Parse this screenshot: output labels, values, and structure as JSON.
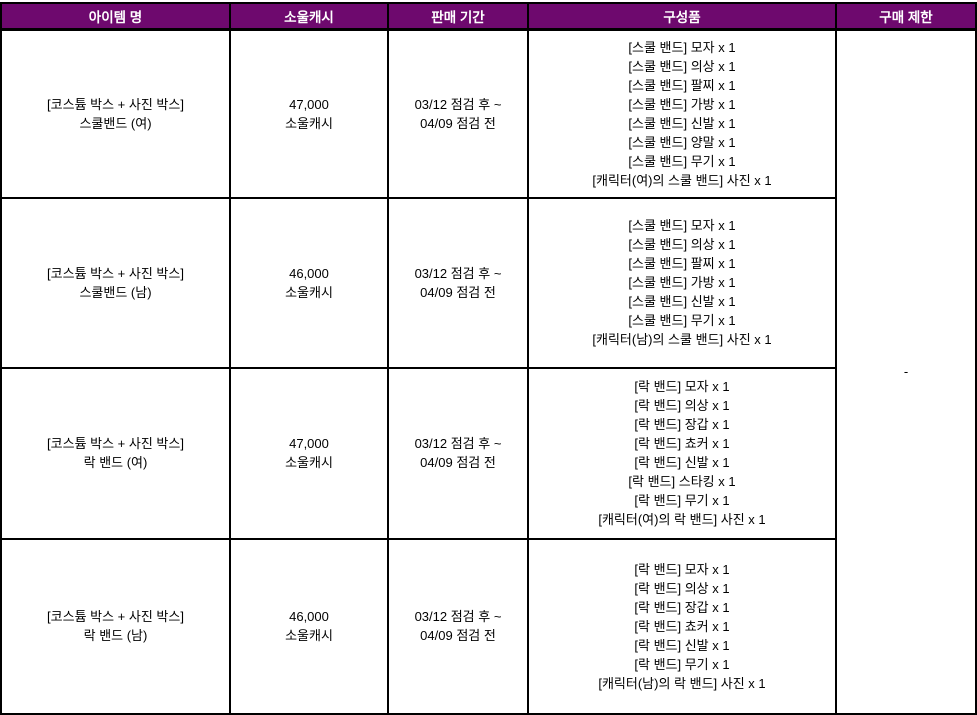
{
  "colors": {
    "header_bg": "#6E096E",
    "header_text": "#FFFFFF",
    "border": "#000000"
  },
  "table": {
    "headers": [
      "아이템 명",
      "소울캐시",
      "판매 기간",
      "구성품",
      "구매 제한"
    ],
    "purchase_limit": "-",
    "rows": [
      {
        "item_name_lines": [
          "[코스튬 박스 + 사진 박스]",
          "스쿨밴드 (여)"
        ],
        "price_lines": [
          "47,000",
          "소울캐시"
        ],
        "period_lines": [
          "03/12 점검 후 ~",
          "04/09 점검 전"
        ],
        "components": [
          "[스쿨 밴드] 모자 x 1",
          "[스쿨 밴드] 의상 x 1",
          "[스쿨 밴드] 팔찌 x 1",
          "[스쿨 밴드] 가방 x 1",
          "[스쿨 밴드] 신발 x 1",
          "[스쿨 밴드] 양말 x 1",
          "[스쿨 밴드] 무기 x 1",
          "[캐릭터(여)의 스쿨 밴드] 사진 x 1"
        ]
      },
      {
        "item_name_lines": [
          "[코스튬 박스 + 사진 박스]",
          "스쿨밴드 (남)"
        ],
        "price_lines": [
          "46,000",
          "소울캐시"
        ],
        "period_lines": [
          "03/12 점검 후 ~",
          "04/09 점검 전"
        ],
        "components": [
          "[스쿨 밴드] 모자 x 1",
          "[스쿨 밴드] 의상 x 1",
          "[스쿨 밴드] 팔찌 x 1",
          "[스쿨 밴드] 가방 x 1",
          "[스쿨 밴드] 신발 x 1",
          "[스쿨 밴드] 무기 x 1",
          "[캐릭터(남)의 스쿨 밴드] 사진 x 1"
        ]
      },
      {
        "item_name_lines": [
          "[코스튬 박스 + 사진 박스]",
          "락 밴드 (여)"
        ],
        "price_lines": [
          "47,000",
          "소울캐시"
        ],
        "period_lines": [
          "03/12 점검 후 ~",
          "04/09 점검 전"
        ],
        "components": [
          "[락 밴드] 모자 x 1",
          "[락 밴드] 의상 x 1",
          "[락 밴드] 장갑 x 1",
          "[락 밴드] 쵸커 x 1",
          "[락 밴드] 신발 x 1",
          "[락 밴드] 스타킹 x 1",
          "[락 밴드] 무기 x 1",
          "[캐릭터(여)의 락 밴드] 사진 x 1"
        ]
      },
      {
        "item_name_lines": [
          "[코스튬 박스 + 사진 박스]",
          "락 밴드 (남)"
        ],
        "price_lines": [
          "46,000",
          "소울캐시"
        ],
        "period_lines": [
          "03/12 점검 후 ~",
          "04/09 점검 전"
        ],
        "components": [
          "[락 밴드] 모자 x 1",
          "[락 밴드] 의상 x 1",
          "[락 밴드] 장갑 x 1",
          "[락 밴드] 쵸커 x 1",
          "[락 밴드] 신발 x 1",
          "[락 밴드] 무기 x 1",
          "[캐릭터(남)의 락 밴드] 사진 x 1"
        ]
      }
    ]
  }
}
